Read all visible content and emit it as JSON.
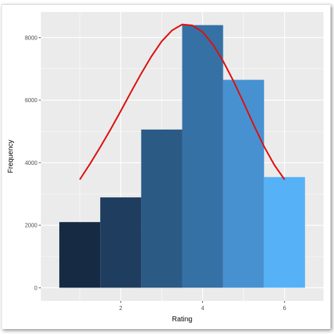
{
  "chart_data": {
    "type": "bar",
    "title": "",
    "xlabel": "Rating",
    "ylabel": "Frequency",
    "bins": [
      {
        "x0": 0.5,
        "x1": 1.5,
        "count": 2100,
        "color": "#162a43"
      },
      {
        "x0": 1.5,
        "x1": 2.5,
        "count": 2890,
        "color": "#1f3d5e"
      },
      {
        "x0": 2.5,
        "x1": 3.5,
        "count": 5060,
        "color": "#2b5a85"
      },
      {
        "x0": 3.5,
        "x1": 4.5,
        "count": 8400,
        "color": "#3571a5"
      },
      {
        "x0": 4.5,
        "x1": 5.5,
        "count": 6650,
        "color": "#4791d1"
      },
      {
        "x0": 5.5,
        "x1": 6.5,
        "count": 3540,
        "color": "#56b1f7"
      }
    ],
    "curve": {
      "color": "#dd1111",
      "x": [
        1.0,
        1.25,
        1.5,
        1.75,
        2.0,
        2.25,
        2.5,
        2.75,
        3.0,
        3.25,
        3.5,
        3.75,
        4.0,
        4.25,
        4.5,
        4.75,
        5.0,
        5.25,
        5.5,
        5.75,
        6.0
      ],
      "y": [
        3460,
        3960,
        4500,
        5060,
        5650,
        6260,
        6850,
        7400,
        7880,
        8230,
        8420,
        8390,
        8180,
        7780,
        7250,
        6620,
        5920,
        5200,
        4520,
        3930,
        3460
      ]
    },
    "xticks": [
      2,
      4,
      6
    ],
    "yticks": [
      0,
      2000,
      4000,
      6000,
      8000
    ],
    "xlim": [
      0.05,
      6.95
    ],
    "ylim": [
      -420,
      8820
    ],
    "grid": true,
    "panel_background": "#ebebeb",
    "grid_color": "#ffffff"
  }
}
